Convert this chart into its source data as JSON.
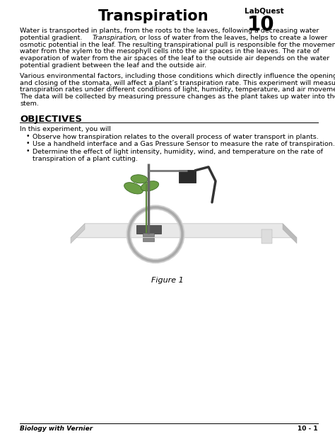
{
  "title": "Transpiration",
  "labquest_label": "LabQuest",
  "labquest_number": "10",
  "paragraph1_line1": "Water is transported in plants, from the roots to the leaves, following a decreasing water",
  "paragraph1_line2_before": "potential gradient. ",
  "paragraph1_line2_italic": "Transpiration",
  "paragraph1_line2_after": ", or loss of water from the leaves, helps to create a lower",
  "paragraph1_line3": "osmotic potential in the leaf. The resulting transpirational pull is responsible for the movement of",
  "paragraph1_line4": "water from the xylem to the mesophyll cells into the air spaces in the leaves. The rate of",
  "paragraph1_line5": "evaporation of water from the air spaces of the leaf to the outside air depends on the water",
  "paragraph1_line6": "potential gradient between the leaf and the outside air.",
  "paragraph2_line1": "Various environmental factors, including those conditions which directly influence the opening",
  "paragraph2_line2": "and closing of the stomata, will affect a plant’s transpiration rate. This experiment will measure",
  "paragraph2_line3": "transpiration rates under different conditions of light, humidity, temperature, and air movement.",
  "paragraph2_line4": "The data will be collected by measuring pressure changes as the plant takes up water into the",
  "paragraph2_line5": "stem.",
  "objectives_header": "OBJECTIVES",
  "objectives_intro": "In this experiment, you will",
  "bullet1": "Observe how transpiration relates to the overall process of water transport in plants.",
  "bullet2": "Use a handheld interface and a Gas Pressure Sensor to measure the rate of transpiration.",
  "bullet3_line1": "Determine the effect of light intensity, humidity, wind, and temperature on the rate of",
  "bullet3_line2": "transpiration of a plant cutting.",
  "figure_label": "Figure 1",
  "footer_left": "Biology with Vernier",
  "footer_right": "10 - 1",
  "bg_color": "#ffffff",
  "text_color": "#000000"
}
